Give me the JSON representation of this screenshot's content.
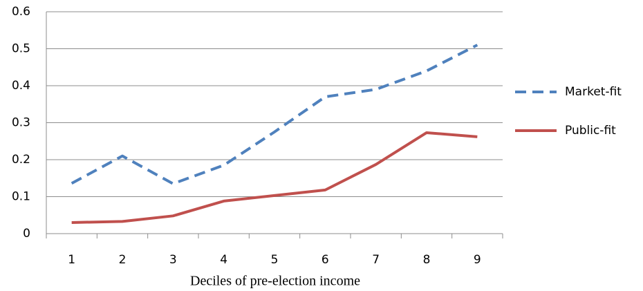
{
  "chart_data": {
    "type": "line",
    "x_label": "Deciles of pre-election income",
    "categories": [
      "1",
      "2",
      "3",
      "4",
      "5",
      "6",
      "7",
      "8",
      "9"
    ],
    "series": [
      {
        "name": "Market-fit",
        "color": "#4f81bd",
        "dash": true,
        "values": [
          0.136,
          0.21,
          0.135,
          0.185,
          0.275,
          0.37,
          0.39,
          0.44,
          0.51
        ]
      },
      {
        "name": "Public-fit",
        "color": "#c0504d",
        "dash": false,
        "values": [
          0.03,
          0.033,
          0.048,
          0.088,
          0.103,
          0.118,
          0.187,
          0.273,
          0.262
        ]
      }
    ],
    "ylim": [
      0,
      0.6
    ],
    "yticks": [
      0,
      0.1,
      0.2,
      0.3,
      0.4,
      0.5,
      0.6
    ],
    "grid": true,
    "legend": "right"
  }
}
